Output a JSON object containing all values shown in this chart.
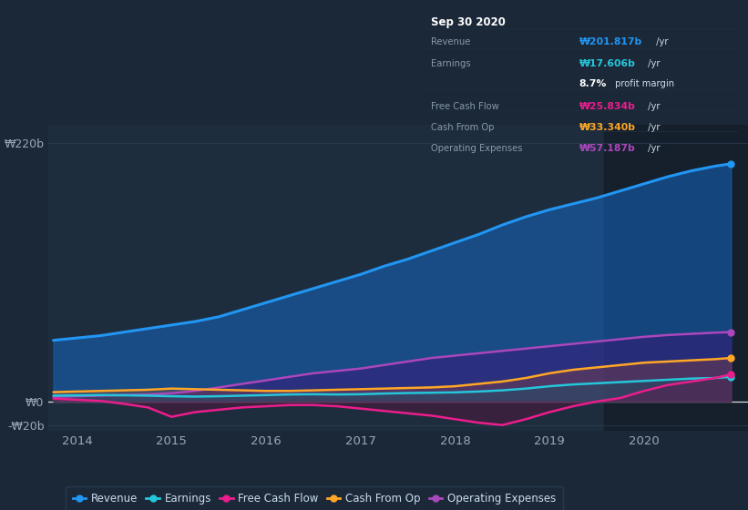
{
  "bg_color": "#1b2838",
  "plot_bg_color": "#1e2d3d",
  "grid_color": "#2a3f55",
  "ylim": [
    -25,
    235
  ],
  "yticks": [
    -20,
    0,
    220
  ],
  "ytick_labels": [
    "-₩20b",
    "₩0",
    "₩220b"
  ],
  "xlim": [
    2013.7,
    2021.1
  ],
  "xticks": [
    2014,
    2015,
    2016,
    2017,
    2018,
    2019,
    2020
  ],
  "highlight_start": 2019.58,
  "series": {
    "Revenue": {
      "color": "#2196f3",
      "fill_color": "#1565c0",
      "fill_alpha": 0.55,
      "linewidth": 2.2,
      "x": [
        2013.75,
        2014.0,
        2014.25,
        2014.5,
        2014.75,
        2015.0,
        2015.25,
        2015.5,
        2015.75,
        2016.0,
        2016.25,
        2016.5,
        2016.75,
        2017.0,
        2017.25,
        2017.5,
        2017.75,
        2018.0,
        2018.25,
        2018.5,
        2018.75,
        2019.0,
        2019.25,
        2019.5,
        2019.75,
        2020.0,
        2020.25,
        2020.5,
        2020.75,
        2020.92
      ],
      "y": [
        52,
        54,
        56,
        59,
        62,
        65,
        68,
        72,
        78,
        84,
        90,
        96,
        102,
        108,
        115,
        121,
        128,
        135,
        142,
        150,
        157,
        163,
        168,
        173,
        179,
        185,
        191,
        196,
        200,
        202
      ]
    },
    "Earnings": {
      "color": "#26c6da",
      "fill_color": "#006064",
      "fill_alpha": 0.3,
      "linewidth": 1.8,
      "x": [
        2013.75,
        2014.0,
        2014.25,
        2014.5,
        2014.75,
        2015.0,
        2015.25,
        2015.5,
        2015.75,
        2016.0,
        2016.25,
        2016.5,
        2016.75,
        2017.0,
        2017.25,
        2017.5,
        2017.75,
        2018.0,
        2018.25,
        2018.5,
        2018.75,
        2019.0,
        2019.25,
        2019.5,
        2019.75,
        2020.0,
        2020.25,
        2020.5,
        2020.75,
        2020.92
      ],
      "y": [
        5,
        5.2,
        5.5,
        5.3,
        5.0,
        4.5,
        4.2,
        4.5,
        5.0,
        5.5,
        6.0,
        6.2,
        6.0,
        6.2,
        6.8,
        7.2,
        7.5,
        7.8,
        8.5,
        9.5,
        11,
        13,
        14.5,
        15.5,
        16.5,
        17.5,
        18.5,
        19.5,
        20,
        21
      ]
    },
    "Free Cash Flow": {
      "color": "#e91e8c",
      "fill_color": "#880040",
      "fill_alpha": 0.25,
      "linewidth": 1.8,
      "x": [
        2013.75,
        2014.0,
        2014.25,
        2014.5,
        2014.75,
        2015.0,
        2015.25,
        2015.5,
        2015.75,
        2016.0,
        2016.25,
        2016.5,
        2016.75,
        2017.0,
        2017.25,
        2017.5,
        2017.75,
        2018.0,
        2018.25,
        2018.5,
        2018.75,
        2019.0,
        2019.25,
        2019.5,
        2019.75,
        2020.0,
        2020.25,
        2020.5,
        2020.75,
        2020.92
      ],
      "y": [
        2.5,
        1.5,
        0.5,
        -2,
        -5,
        -13,
        -9,
        -7,
        -5,
        -4,
        -3,
        -3,
        -4,
        -6,
        -8,
        -10,
        -12,
        -15,
        -18,
        -20,
        -15,
        -9,
        -4,
        0,
        3,
        9,
        14,
        17,
        20,
        23
      ]
    },
    "Cash From Op": {
      "color": "#ffa726",
      "fill_color": "#e65100",
      "fill_alpha": 0.2,
      "linewidth": 1.8,
      "x": [
        2013.75,
        2014.0,
        2014.25,
        2014.5,
        2014.75,
        2015.0,
        2015.25,
        2015.5,
        2015.75,
        2016.0,
        2016.25,
        2016.5,
        2016.75,
        2017.0,
        2017.25,
        2017.5,
        2017.75,
        2018.0,
        2018.25,
        2018.5,
        2018.75,
        2019.0,
        2019.25,
        2019.5,
        2019.75,
        2020.0,
        2020.25,
        2020.5,
        2020.75,
        2020.92
      ],
      "y": [
        8,
        8.5,
        9,
        9.5,
        10,
        11,
        10.5,
        10,
        9.5,
        9,
        9,
        9.5,
        10,
        10.5,
        11,
        11.5,
        12,
        13,
        15,
        17,
        20,
        24,
        27,
        29,
        31,
        33,
        34,
        35,
        36,
        37
      ]
    },
    "Operating Expenses": {
      "color": "#ab47bc",
      "fill_color": "#4a0072",
      "fill_alpha": 0.35,
      "linewidth": 1.8,
      "x": [
        2013.75,
        2014.0,
        2014.25,
        2014.5,
        2014.75,
        2015.0,
        2015.25,
        2015.5,
        2015.75,
        2016.0,
        2016.25,
        2016.5,
        2016.75,
        2017.0,
        2017.25,
        2017.5,
        2017.75,
        2018.0,
        2018.25,
        2018.5,
        2018.75,
        2019.0,
        2019.25,
        2019.5,
        2019.75,
        2020.0,
        2020.25,
        2020.5,
        2020.75,
        2020.92
      ],
      "y": [
        4,
        4.5,
        5,
        5.5,
        6,
        7,
        9,
        12,
        15,
        18,
        21,
        24,
        26,
        28,
        31,
        34,
        37,
        39,
        41,
        43,
        45,
        47,
        49,
        51,
        53,
        55,
        56.5,
        57.5,
        58.5,
        59
      ]
    }
  },
  "legend": [
    {
      "label": "Revenue",
      "color": "#2196f3"
    },
    {
      "label": "Earnings",
      "color": "#26c6da"
    },
    {
      "label": "Free Cash Flow",
      "color": "#e91e8c"
    },
    {
      "label": "Cash From Op",
      "color": "#ffa726"
    },
    {
      "label": "Operating Expenses",
      "color": "#ab47bc"
    }
  ],
  "infobox": {
    "title": "Sep 30 2020",
    "rows": [
      {
        "label": "Revenue",
        "value": "₩201.817b",
        "suffix": " /yr",
        "vcolor": "#2196f3",
        "has_sep_above": false
      },
      {
        "label": "Earnings",
        "value": "₩17.606b",
        "suffix": " /yr",
        "vcolor": "#26c6da",
        "has_sep_above": true
      },
      {
        "label": "",
        "value": "8.7%",
        "suffix": " profit margin",
        "vcolor": "#ffffff",
        "has_sep_above": false
      },
      {
        "label": "Free Cash Flow",
        "value": "₩25.834b",
        "suffix": " /yr",
        "vcolor": "#e91e8c",
        "has_sep_above": true
      },
      {
        "label": "Cash From Op",
        "value": "₩33.340b",
        "suffix": " /yr",
        "vcolor": "#ffa726",
        "has_sep_above": true
      },
      {
        "label": "Operating Expenses",
        "value": "₩57.187b",
        "suffix": " /yr",
        "vcolor": "#ab47bc",
        "has_sep_above": true
      }
    ]
  }
}
